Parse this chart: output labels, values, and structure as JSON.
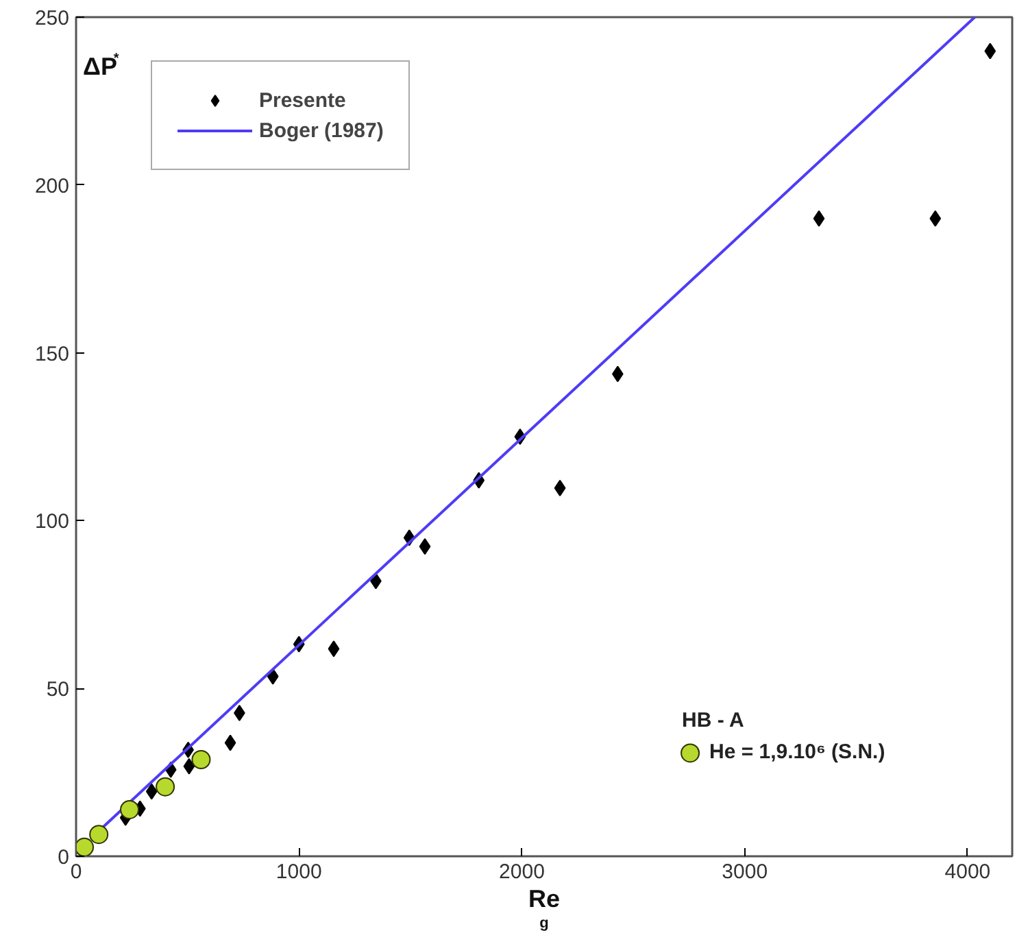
{
  "chart_data": {
    "type": "scatter",
    "xlabel": "Re$_{g}$",
    "ylabel": "ΔP$^{*}$",
    "legend_title": "HB - A",
    "xlim": [
      0,
      4200
    ],
    "ylim": [
      0,
      250
    ],
    "xticks": [
      0,
      1000,
      2000,
      3000,
      4000
    ],
    "yticks": [
      0,
      50,
      100,
      150,
      200,
      250
    ],
    "legend": "top left",
    "grid": false,
    "series": [
      {
        "name": "Presente",
        "type": "scatter",
        "marker": "diamond",
        "color": "#000000",
        "x": [
          222,
          287,
          339,
          425,
          503,
          507,
          692,
          733,
          883,
          1000,
          1156,
          1345,
          1495,
          1565,
          1807,
          1992,
          2171,
          2430,
          3333,
          3855,
          4101
        ],
        "values": [
          11.5,
          14.2,
          19.3,
          25.8,
          31.7,
          26.8,
          33.8,
          42.7,
          53.6,
          63.2,
          61.8,
          82.0,
          94.9,
          92.3,
          112,
          125.0,
          109.7,
          143.7,
          190.0,
          190.0,
          239.9
        ]
      },
      {
        "name": "Boger (1987)",
        "type": "line",
        "line_style": "solid",
        "color": "#4f3cf5",
        "x": [
          100,
          4032
        ],
        "values": [
          7.4,
          250
        ]
      },
      {
        "name": "He = 1,9.10⁶ (S.N.)",
        "type": "scatter",
        "marker": "circle",
        "color": "#b7d92e",
        "x": [
          37,
          102,
          240,
          400,
          561
        ],
        "values": [
          2.7,
          6.5,
          13.9,
          20.7,
          28.8
        ]
      }
    ]
  }
}
